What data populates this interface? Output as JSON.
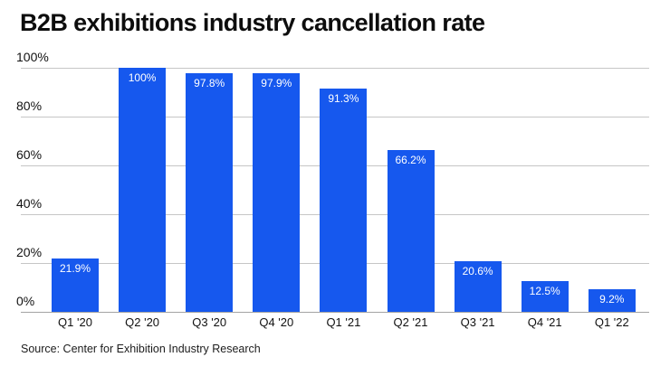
{
  "header": {
    "title": "B2B exhibitions industry cancellation rate"
  },
  "footer": {
    "source": "Source: Center for Exhibition Industry Research"
  },
  "colors": {
    "bar": "#1658ee",
    "grid": "#c6c6c6",
    "axis_line": "#a3a3a3",
    "title_text": "#0d0d0d",
    "tick_text": "#111111",
    "value_label_text": "#ffffff",
    "background": "#ffffff"
  },
  "chart_data": {
    "type": "bar",
    "title": "B2B exhibitions industry cancellation rate",
    "categories": [
      "Q1 '20",
      "Q2 '20",
      "Q3 '20",
      "Q4 '20",
      "Q1 '21",
      "Q2 '21",
      "Q3 '21",
      "Q4 '21",
      "Q1 '22"
    ],
    "values": [
      21.9,
      100,
      97.8,
      97.9,
      91.3,
      66.2,
      20.6,
      12.5,
      9.2
    ],
    "value_labels": [
      "21.9%",
      "100%",
      "97.8%",
      "97.9%",
      "91.3%",
      "66.2%",
      "20.6%",
      "12.5%",
      "9.2%"
    ],
    "xlabel": "",
    "ylabel": "",
    "ylim": [
      0,
      100
    ],
    "yticks": [
      0,
      20,
      40,
      60,
      80,
      100
    ],
    "ytick_labels": [
      "0%",
      "20%",
      "40%",
      "60%",
      "80%",
      "100%"
    ],
    "grid": true,
    "legend": false,
    "source": "Source: Center for Exhibition Industry Research"
  }
}
